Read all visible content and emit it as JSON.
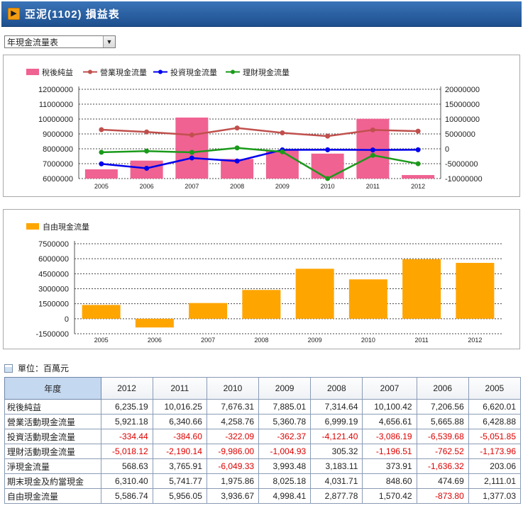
{
  "header": {
    "arrow_icon": "play-arrow-icon",
    "title": "亞泥(1102) 損益表"
  },
  "selector": {
    "value": "年現金流量表"
  },
  "unit": {
    "label": "單位：百萬元"
  },
  "chart_data": [
    {
      "type": "bar+line",
      "years": [
        "2005",
        "2006",
        "2007",
        "2008",
        "2009",
        "2010",
        "2011",
        "2012"
      ],
      "left_axis": {
        "ticks": [
          "12000000",
          "11000000",
          "10000000",
          "9000000",
          "8000000",
          "7000000",
          "6000000"
        ],
        "ylim": [
          6000000,
          12000000
        ]
      },
      "right_axis": {
        "ticks": [
          "20000000",
          "15000000",
          "10000000",
          "5000000",
          "0",
          "-5000000",
          "-10000000"
        ],
        "ylim": [
          -10000000,
          20000000
        ]
      },
      "series": [
        {
          "name": "稅後純益",
          "type": "bar",
          "axis": "left",
          "color": "#f06292",
          "values": [
            6620010,
            7206560,
            10100420,
            7314640,
            7885010,
            7676310,
            10016250,
            6235190
          ]
        },
        {
          "name": "營業現金流量",
          "type": "line",
          "axis": "right",
          "color": "#c0504d",
          "values": [
            6428880,
            5665880,
            4656610,
            6999190,
            5360780,
            4258760,
            6340660,
            5921180
          ]
        },
        {
          "name": "投資現金流量",
          "type": "line",
          "axis": "right",
          "color": "#0000ee",
          "values": [
            -5051850,
            -6539680,
            -3086190,
            -4121400,
            -362370,
            -322090,
            -384600,
            -334440
          ]
        },
        {
          "name": "理財現金流量",
          "type": "line",
          "axis": "right",
          "color": "#1a9a1a",
          "values": [
            -1173960,
            -762520,
            -1196510,
            305320,
            -1004930,
            -9986000,
            -2190140,
            -5018120
          ]
        }
      ]
    },
    {
      "type": "bar",
      "years": [
        "2005",
        "2006",
        "2007",
        "2008",
        "2009",
        "2010",
        "2011",
        "2012"
      ],
      "axis": {
        "ticks": [
          "7500000",
          "6000000",
          "4500000",
          "3000000",
          "1500000",
          "0",
          "-1500000"
        ],
        "ylim": [
          -1500000,
          7500000
        ]
      },
      "series": [
        {
          "name": "自由現金流量",
          "type": "bar",
          "color": "#ffa500",
          "values": [
            1377030,
            -873800,
            1570420,
            2877780,
            4998410,
            3936670,
            5956050,
            5586740
          ]
        }
      ]
    }
  ],
  "table": {
    "corner": "年度",
    "years": [
      "2012",
      "2011",
      "2010",
      "2009",
      "2008",
      "2007",
      "2006",
      "2005"
    ],
    "rows": [
      {
        "label": "稅後純益",
        "values": [
          "6,235.19",
          "10,016.25",
          "7,676.31",
          "7,885.01",
          "7,314.64",
          "10,100.42",
          "7,206.56",
          "6,620.01"
        ]
      },
      {
        "label": "營業活動現金流量",
        "values": [
          "5,921.18",
          "6,340.66",
          "4,258.76",
          "5,360.78",
          "6,999.19",
          "4,656.61",
          "5,665.88",
          "6,428.88"
        ]
      },
      {
        "label": "投資活動現金流量",
        "values": [
          "-334.44",
          "-384.60",
          "-322.09",
          "-362.37",
          "-4,121.40",
          "-3,086.19",
          "-6,539.68",
          "-5,051.85"
        ]
      },
      {
        "label": "理財活動現金流量",
        "values": [
          "-5,018.12",
          "-2,190.14",
          "-9,986.00",
          "-1,004.93",
          "305.32",
          "-1,196.51",
          "-762.52",
          "-1,173.96"
        ]
      },
      {
        "label": "淨現金流量",
        "values": [
          "568.63",
          "3,765.91",
          "-6,049.33",
          "3,993.48",
          "3,183.11",
          "373.91",
          "-1,636.32",
          "203.06"
        ]
      },
      {
        "label": "期末現金及約當現金",
        "values": [
          "6,310.40",
          "5,741.77",
          "1,975.86",
          "8,025.18",
          "4,031.71",
          "848.60",
          "474.69",
          "2,111.01"
        ]
      },
      {
        "label": "自由現金流量",
        "values": [
          "5,586.74",
          "5,956.05",
          "3,936.67",
          "4,998.41",
          "2,877.78",
          "1,570.42",
          "-873.80",
          "1,377.03"
        ]
      }
    ]
  }
}
